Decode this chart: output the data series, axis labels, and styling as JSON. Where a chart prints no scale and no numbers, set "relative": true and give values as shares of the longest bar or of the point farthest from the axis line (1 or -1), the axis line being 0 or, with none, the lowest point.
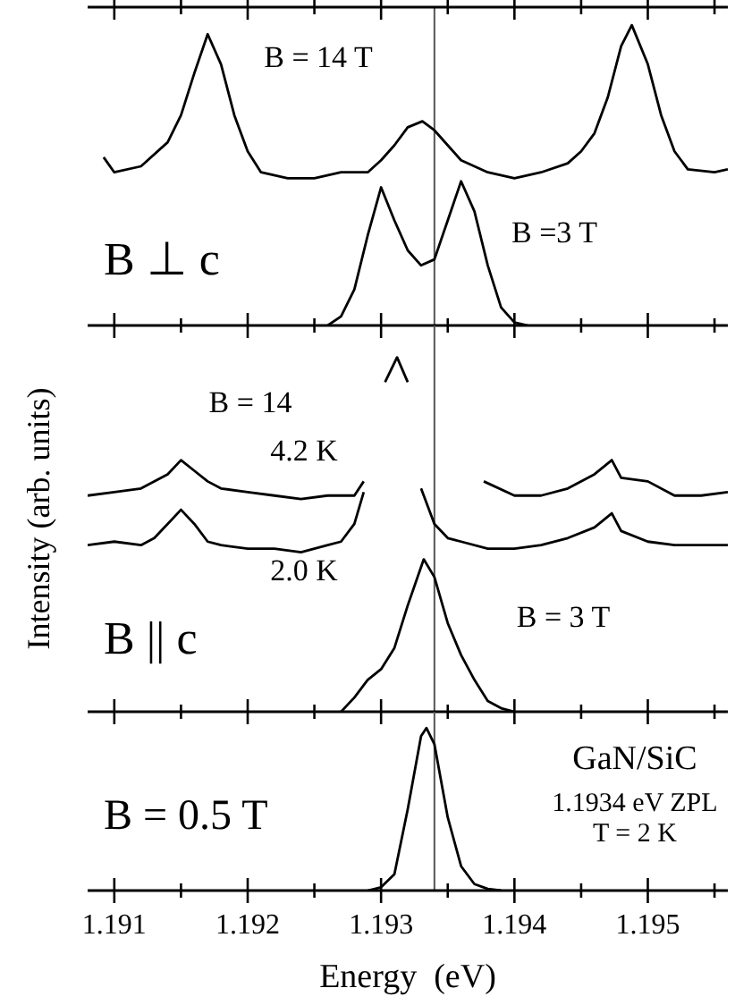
{
  "chart_data": [
    {
      "type": "line",
      "relative": true,
      "xlim": [
        1.1908,
        1.1956
      ],
      "xticks": [
        1.191,
        {
          "value": 1.1915,
          "label": null
        },
        1.192,
        {
          "value": 1.1925,
          "label": null
        },
        1.193,
        {
          "value": 1.1935,
          "label": null
        },
        1.194,
        {
          "value": 1.1945,
          "label": null
        },
        1.195,
        {
          "value": 1.1955,
          "label": null
        }
      ],
      "tick_labels": false,
      "ref_lines": [
        {
          "axis": "x",
          "value": 1.1934
        }
      ],
      "annotations": [
        "B = 14 T",
        "B =3 T",
        "B ⊥ c"
      ],
      "series": [
        {
          "color": "#000000",
          "x": [
            1.19092,
            1.191,
            1.1912,
            1.1914,
            1.1915,
            1.1916,
            1.1917,
            1.1918,
            1.1919,
            1.192,
            1.1921,
            1.1923,
            1.1925,
            1.1927,
            1.1929,
            1.193,
            1.1931,
            1.1932,
            1.19331,
            1.1934,
            1.1935,
            1.1936,
            1.1938,
            1.194,
            1.1942,
            1.1944,
            1.1945,
            1.1946,
            1.1947,
            1.1948,
            1.19488,
            1.195,
            1.1951,
            1.1952,
            1.1953,
            1.1955,
            1.1956
          ],
          "values": [
            0.56,
            0.51,
            0.53,
            0.61,
            0.7,
            0.84,
            0.97,
            0.87,
            0.7,
            0.58,
            0.51,
            0.49,
            0.49,
            0.51,
            0.51,
            0.55,
            0.6,
            0.66,
            0.68,
            0.65,
            0.6,
            0.55,
            0.51,
            0.49,
            0.51,
            0.54,
            0.58,
            0.64,
            0.76,
            0.93,
            1,
            0.87,
            0.7,
            0.58,
            0.52,
            0.51,
            0.52
          ]
        },
        {
          "color": "#000000",
          "x": [
            1.1926,
            1.1927,
            1.1928,
            1.1929,
            1.193,
            1.1931,
            1.1932,
            1.1933,
            1.1934,
            1.1935,
            1.1936,
            1.1937,
            1.1938,
            1.1939,
            1.194,
            1.1941
          ],
          "values": [
            0,
            0.03,
            0.12,
            0.3,
            0.46,
            0.35,
            0.25,
            0.2,
            0.22,
            0.35,
            0.48,
            0.38,
            0.2,
            0.06,
            0.01,
            0
          ]
        }
      ]
    },
    {
      "type": "line",
      "relative": true,
      "xlim": [
        1.1908,
        1.1956
      ],
      "xticks": [
        1.191,
        {
          "value": 1.1915,
          "label": null
        },
        1.192,
        {
          "value": 1.1925,
          "label": null
        },
        1.193,
        {
          "value": 1.1935,
          "label": null
        },
        1.194,
        {
          "value": 1.1945,
          "label": null
        },
        1.195,
        {
          "value": 1.1955,
          "label": null
        }
      ],
      "tick_labels": false,
      "ylabel": "Intensity (arb. units)",
      "ref_lines": [
        {
          "axis": "x",
          "value": 1.1934
        }
      ],
      "annotations": [
        "B = 14",
        "4.2 K",
        "2.0 K",
        "B || c",
        "B = 3 T"
      ],
      "series": [
        {
          "color": "#000000",
          "x": [
            1.1908,
            1.191,
            1.1912,
            1.1914,
            1.1915,
            1.1916,
            1.1917,
            1.1918,
            1.192,
            1.1922,
            1.1924,
            1.1926,
            1.1928,
            1.19287,
            1.193,
            1.19377,
            1.194,
            1.1942,
            1.1944,
            1.1946,
            1.19473,
            1.1948,
            1.195,
            1.1952,
            1.1954,
            1.1956
          ],
          "values": [
            0.61,
            0.62,
            0.63,
            0.67,
            0.71,
            0.68,
            0.65,
            0.63,
            0.62,
            0.61,
            0.6,
            0.61,
            0.61,
            0.65,
            null,
            0.65,
            0.61,
            0.61,
            0.63,
            0.67,
            0.71,
            0.66,
            0.65,
            0.61,
            0.61,
            0.62
          ]
        },
        {
          "color": "#000000",
          "x": [
            1.1908,
            1.191,
            1.1912,
            1.1913,
            1.1914,
            1.1915,
            1.1916,
            1.1917,
            1.1918,
            1.192,
            1.1922,
            1.1924,
            1.1926,
            1.1927,
            1.1928,
            1.19287,
            1.1929,
            1.19303,
            1.19312,
            1.1932,
            1.19325,
            1.1933,
            1.1934,
            1.1935,
            1.1936,
            1.1938,
            1.194,
            1.1942,
            1.1944,
            1.1946,
            1.19473,
            1.1948,
            1.195,
            1.1952,
            1.1954,
            1.1956
          ],
          "values": [
            0.47,
            0.48,
            0.47,
            0.49,
            0.53,
            0.57,
            0.53,
            0.48,
            0.47,
            0.46,
            0.46,
            0.45,
            0.47,
            0.48,
            0.53,
            0.62,
            null,
            0.93,
            1,
            0.93,
            null,
            0.63,
            0.53,
            0.49,
            0.48,
            0.46,
            0.46,
            0.47,
            0.49,
            0.52,
            0.56,
            0.51,
            0.48,
            0.47,
            0.47,
            0.47
          ]
        },
        {
          "color": "#000000",
          "x": [
            1.1927,
            1.1928,
            1.1929,
            1.193,
            1.1931,
            1.1932,
            1.19332,
            1.1934,
            1.1935,
            1.1936,
            1.1937,
            1.1938,
            1.1939,
            1.194
          ],
          "values": [
            0,
            0.04,
            0.09,
            0.12,
            0.18,
            0.3,
            0.43,
            0.38,
            0.25,
            0.16,
            0.09,
            0.03,
            0.01,
            0
          ]
        }
      ]
    },
    {
      "type": "line",
      "relative": true,
      "xlim": [
        1.1908,
        1.1956
      ],
      "xticks": [
        1.191,
        {
          "value": 1.1915,
          "label": null
        },
        1.192,
        {
          "value": 1.1925,
          "label": null
        },
        1.193,
        {
          "value": 1.1935,
          "label": null
        },
        1.194,
        {
          "value": 1.1945,
          "label": null
        },
        1.195,
        {
          "value": 1.1955,
          "label": null
        }
      ],
      "tick_labels": "x",
      "xlabel": "Energy  (eV)",
      "ref_lines": [
        {
          "axis": "x",
          "value": 1.1934
        }
      ],
      "annotations": [
        "B = 0.5 T",
        "GaN/SiC",
        "1.1934 eV ZPL",
        "T = 2 K"
      ],
      "series": [
        {
          "color": "#000000",
          "x": [
            1.1929,
            1.193,
            1.1931,
            1.1932,
            1.1933,
            1.19334,
            1.1934,
            1.1935,
            1.1936,
            1.1937,
            1.1938,
            1.1939
          ],
          "values": [
            0,
            0.02,
            0.1,
            0.5,
            0.95,
            1,
            0.9,
            0.45,
            0.15,
            0.04,
            0.01,
            0
          ]
        }
      ]
    }
  ]
}
